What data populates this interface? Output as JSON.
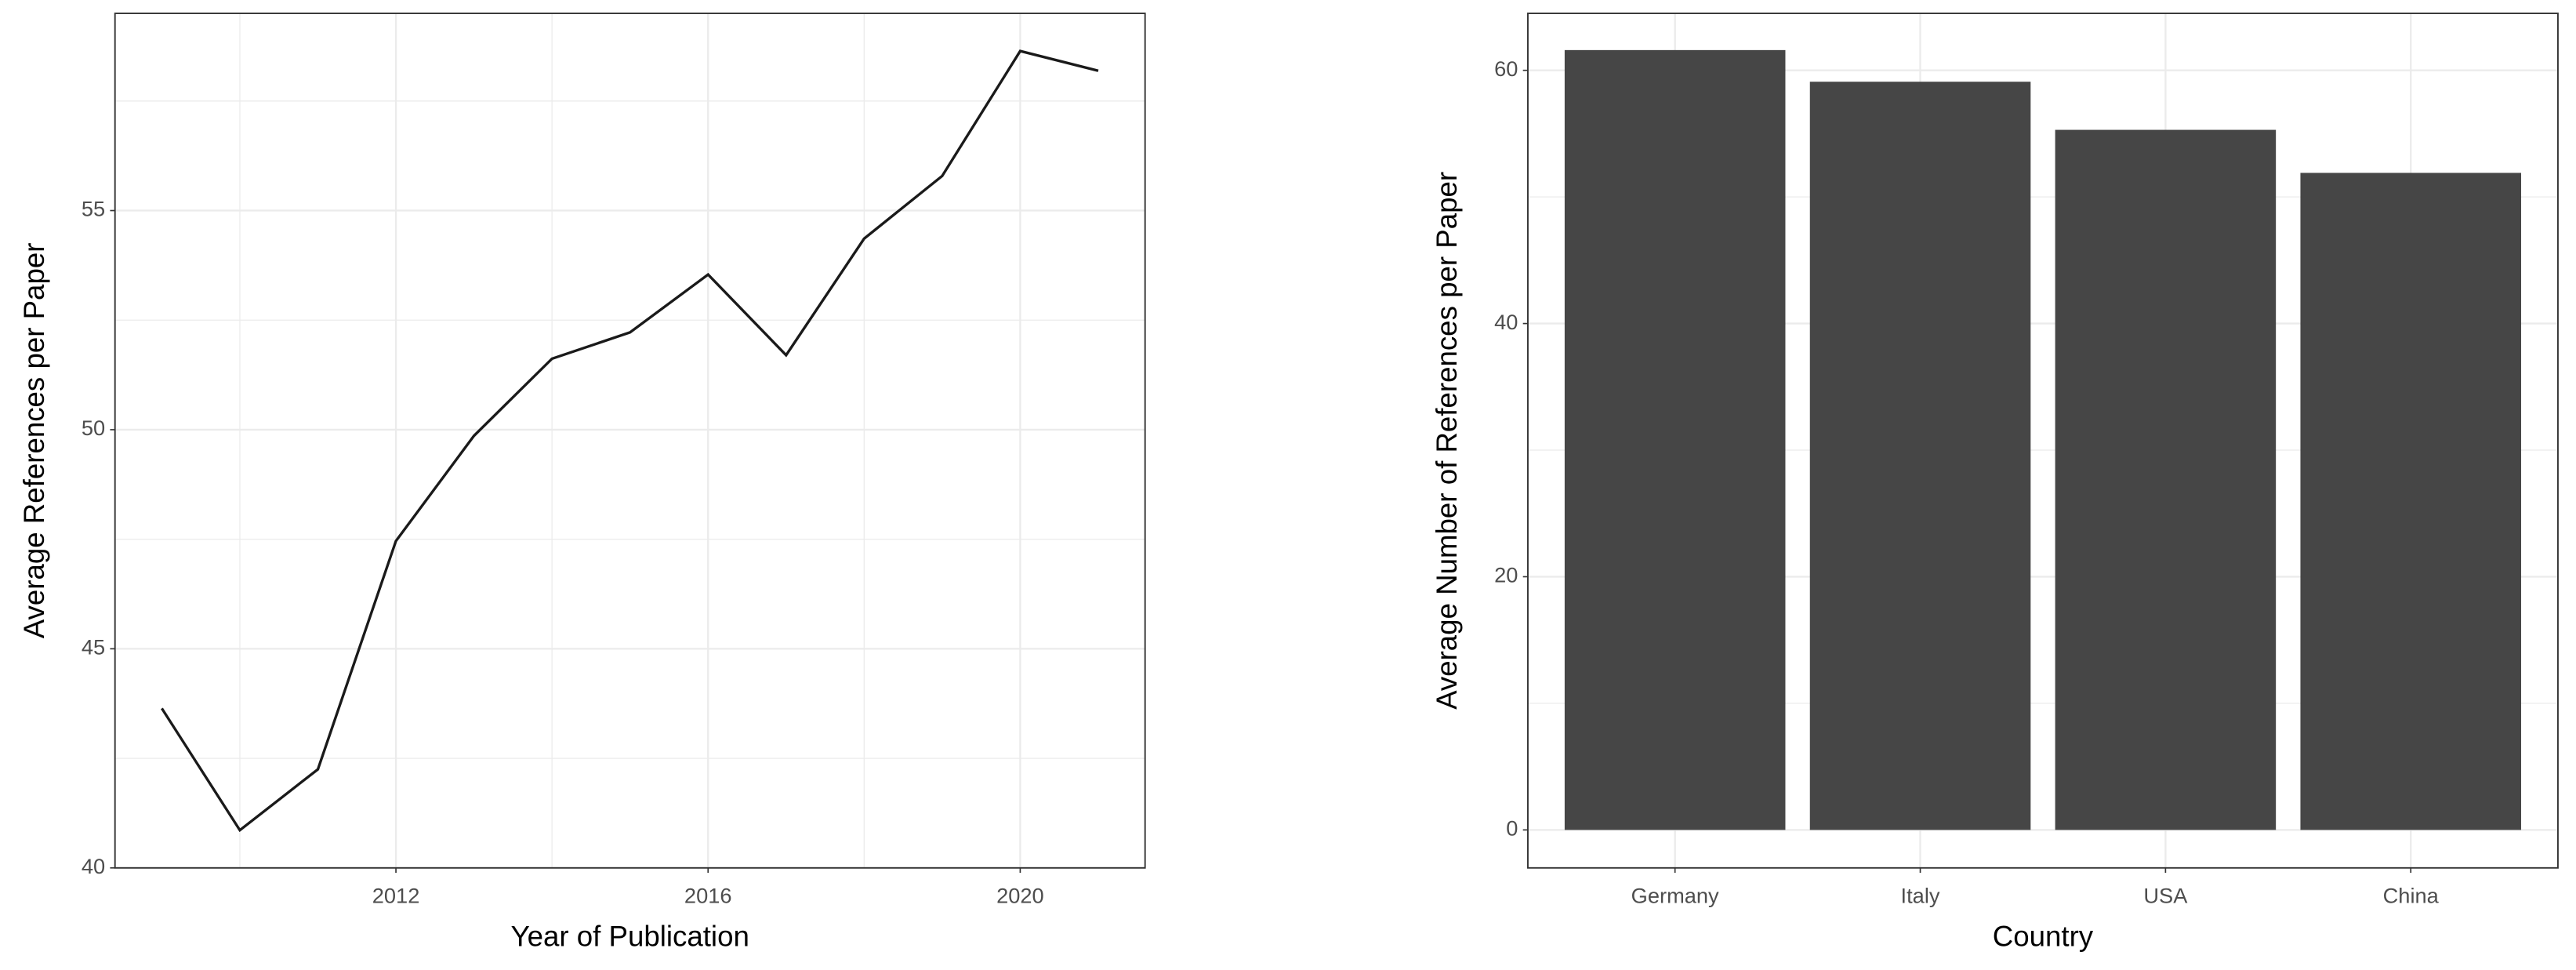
{
  "chart_data": [
    {
      "type": "line",
      "x_label": "Year of Publication",
      "y_label": "Average References per Paper",
      "x": [
        2009,
        2010,
        2011,
        2012,
        2013,
        2014,
        2015,
        2016,
        2017,
        2018,
        2019,
        2020,
        2021
      ],
      "values": [
        43.64,
        40.86,
        42.25,
        47.46,
        49.86,
        51.62,
        52.22,
        53.54,
        51.7,
        54.36,
        55.79,
        58.64,
        58.19
      ],
      "color": "#1a1a1a",
      "xlim": [
        2008.4,
        2021.6
      ],
      "xticks": [
        2012,
        2016,
        2020
      ],
      "ylim": [
        40,
        59.5
      ],
      "yticks": [
        40,
        45,
        50,
        55
      ],
      "grid": true
    },
    {
      "type": "bar",
      "x_label": "Country",
      "y_label": "Average Number of References per Paper",
      "categories": [
        "Germany",
        "Italy",
        "USA",
        "China"
      ],
      "values": [
        61.6,
        59.1,
        55.3,
        51.9
      ],
      "color": "#464646",
      "ylim": [
        -3,
        64.5
      ],
      "yticks": [
        0,
        20,
        40,
        60
      ],
      "grid": true
    }
  ]
}
